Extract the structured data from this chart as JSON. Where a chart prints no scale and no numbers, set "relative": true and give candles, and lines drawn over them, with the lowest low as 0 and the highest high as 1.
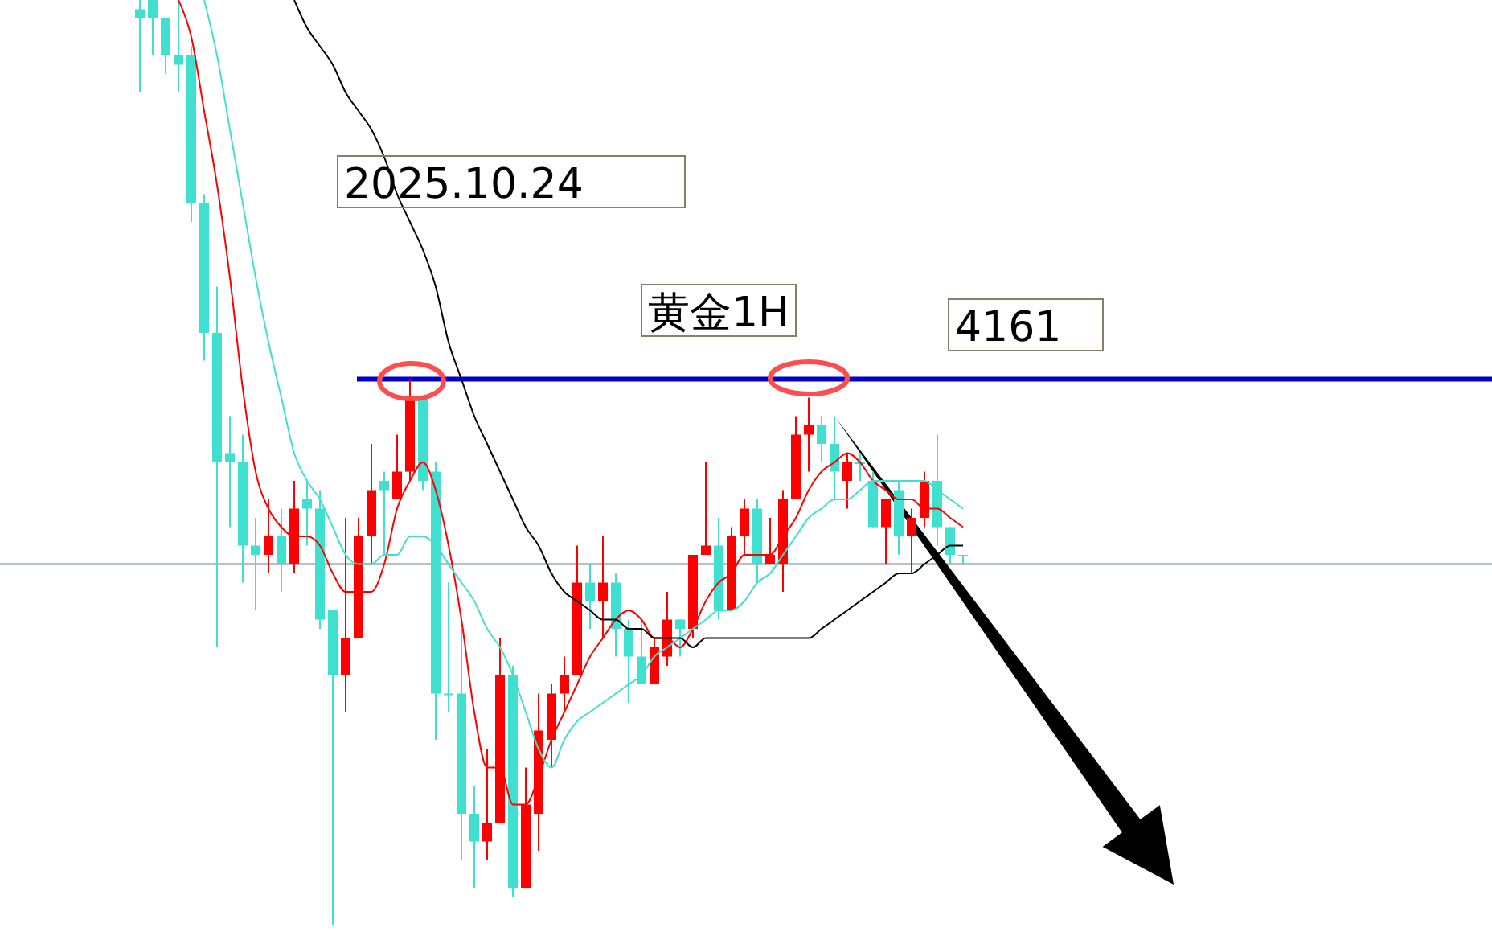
{
  "chart_data": {
    "type": "candlestick",
    "relative": true,
    "categories": [
      null,
      null,
      null,
      null,
      null,
      null,
      null,
      null,
      null,
      null,
      null,
      null,
      null,
      null,
      null,
      null,
      null,
      null,
      null,
      null,
      null,
      null,
      null,
      null,
      null,
      null,
      null,
      null,
      null,
      null,
      null,
      null,
      null,
      null,
      null,
      null,
      null,
      null,
      null,
      null,
      null,
      null,
      null,
      null,
      null,
      null,
      null,
      null,
      null,
      null,
      null,
      null,
      null,
      null,
      null,
      null,
      null,
      null,
      null,
      null,
      null,
      null,
      null,
      null,
      null
    ],
    "ohlc": [
      [
        0.99,
        1,
        0.9,
        0.98
      ],
      [
        1,
        1,
        0.94,
        0.98
      ],
      [
        0.98,
        0.98,
        0.92,
        0.94
      ],
      [
        0.94,
        1,
        0.9,
        0.93
      ],
      [
        0.94,
        0.95,
        0.76,
        0.78
      ],
      [
        0.78,
        0.79,
        0.61,
        0.64
      ],
      [
        0.64,
        0.69,
        0.3,
        0.5
      ],
      [
        0.51,
        0.55,
        0.43,
        0.5
      ],
      [
        0.5,
        0.53,
        0.37,
        0.41
      ],
      [
        0.41,
        0.44,
        0.34,
        0.4
      ],
      [
        0.4,
        0.46,
        0.38,
        0.42
      ],
      [
        0.42,
        0.45,
        0.36,
        0.39
      ],
      [
        0.39,
        0.48,
        0.38,
        0.45
      ],
      [
        0.46,
        0.48,
        0.41,
        0.45
      ],
      [
        0.45,
        0.47,
        0.32,
        0.33
      ],
      [
        0.34,
        0.34,
        0,
        0.27
      ],
      [
        0.27,
        0.44,
        0.23,
        0.31
      ],
      [
        0.31,
        0.44,
        0.31,
        0.42
      ],
      [
        0.42,
        0.52,
        0.39,
        0.47
      ],
      [
        0.48,
        0.49,
        0.4,
        0.47
      ],
      [
        0.46,
        0.53,
        0.46,
        0.49
      ],
      [
        0.49,
        0.59,
        0.48,
        0.57
      ],
      [
        0.57,
        0.57,
        0.47,
        0.48
      ],
      [
        0.49,
        0.5,
        0.2,
        0.25
      ],
      [
        0.25,
        0.37,
        0.23,
        0.25
      ],
      [
        0.25,
        0.32,
        0.07,
        0.12
      ],
      [
        0.12,
        0.15,
        0.04,
        0.09
      ],
      [
        0.09,
        0.19,
        0.07,
        0.11
      ],
      [
        0.11,
        0.31,
        0.11,
        0.27
      ],
      [
        0.27,
        0.28,
        0.03,
        0.04
      ],
      [
        0.04,
        0.17,
        0.04,
        0.13
      ],
      [
        0.12,
        0.25,
        0.08,
        0.21
      ],
      [
        0.2,
        0.26,
        0.17,
        0.25
      ],
      [
        0.25,
        0.29,
        0.23,
        0.27
      ],
      [
        0.27,
        0.41,
        0.27,
        0.37
      ],
      [
        0.37,
        0.39,
        0.32,
        0.35
      ],
      [
        0.35,
        0.42,
        0.31,
        0.37
      ],
      [
        0.37,
        0.38,
        0.29,
        0.32
      ],
      [
        0.32,
        0.33,
        0.24,
        0.29
      ],
      [
        0.29,
        0.33,
        0.26,
        0.26
      ],
      [
        0.26,
        0.31,
        0.26,
        0.3
      ],
      [
        0.29,
        0.36,
        0.28,
        0.33
      ],
      [
        0.33,
        0.33,
        0.29,
        0.32
      ],
      [
        0.32,
        0.4,
        0.31,
        0.4
      ],
      [
        0.4,
        0.5,
        0.4,
        0.41
      ],
      [
        0.41,
        0.44,
        0.33,
        0.34
      ],
      [
        0.34,
        0.43,
        0.34,
        0.42
      ],
      [
        0.42,
        0.46,
        0.4,
        0.45
      ],
      [
        0.45,
        0.46,
        0.37,
        0.39
      ],
      [
        0.39,
        0.44,
        0.39,
        0.4
      ],
      [
        0.39,
        0.47,
        0.36,
        0.46
      ],
      [
        0.46,
        0.55,
        0.46,
        0.53
      ],
      [
        0.53,
        0.57,
        0.49,
        0.54
      ],
      [
        0.54,
        0.55,
        0.5,
        0.52
      ],
      [
        0.52,
        0.55,
        0.46,
        0.49
      ],
      [
        0.48,
        0.51,
        0.45,
        0.5
      ],
      [
        0.5,
        0.51,
        0.48,
        0.5
      ],
      [
        0.48,
        0.49,
        0.43,
        0.43
      ],
      [
        0.43,
        0.46,
        0.39,
        0.46
      ],
      [
        0.47,
        0.48,
        0.4,
        0.42
      ],
      [
        0.42,
        0.45,
        0.38,
        0.44
      ],
      [
        0.44,
        0.49,
        0.43,
        0.48
      ],
      [
        0.48,
        0.53,
        0.41,
        0.43
      ],
      [
        0.43,
        0.43,
        0.39,
        0.4
      ],
      [
        0.4,
        0.4,
        0.39,
        0.4
      ]
    ],
    "colors": [
      "#40e0d0",
      "#40e0d0",
      "#40e0d0",
      "#40e0d0",
      "#40e0d0",
      "#40e0d0",
      "#40e0d0",
      "#40e0d0",
      "#40e0d0",
      "#40e0d0",
      "#ff0000",
      "#40e0d0",
      "#ff0000",
      "#40e0d0",
      "#40e0d0",
      "#40e0d0",
      "#ff0000",
      "#ff0000",
      "#ff0000",
      "#40e0d0",
      "#ff0000",
      "#ff0000",
      "#40e0d0",
      "#40e0d0",
      "#40e0d0",
      "#40e0d0",
      "#40e0d0",
      "#ff0000",
      "#ff0000",
      "#40e0d0",
      "#ff0000",
      "#ff0000",
      "#ff0000",
      "#ff0000",
      "#ff0000",
      "#40e0d0",
      "#ff0000",
      "#40e0d0",
      "#40e0d0",
      "#40e0d0",
      "#ff0000",
      "#ff0000",
      "#40e0d0",
      "#ff0000",
      "#ff0000",
      "#40e0d0",
      "#ff0000",
      "#ff0000",
      "#40e0d0",
      "#ff0000",
      "#ff0000",
      "#ff0000",
      "#ff0000",
      "#40e0d0",
      "#40e0d0",
      "#ff0000",
      "#40e0d0",
      "#40e0d0",
      "#ff0000",
      "#40e0d0",
      "#ff0000",
      "#ff0000",
      "#40e0d0",
      "#40e0d0",
      "#40e0d0"
    ],
    "series": [
      {
        "type": "line",
        "color": "#ff0000",
        "values": [
          null,
          null,
          null,
          1,
          0.96,
          0.88,
          0.8,
          0.7,
          0.58,
          0.49,
          0.45,
          0.43,
          0.42,
          0.42,
          0.41,
          0.38,
          0.36,
          0.36,
          0.36,
          0.39,
          0.45,
          0.48,
          0.5,
          0.47,
          0.41,
          0.33,
          0.23,
          0.17,
          0.17,
          0.13,
          0.13,
          0.16,
          0.2,
          0.23,
          0.26,
          0.29,
          0.31,
          0.33,
          0.34,
          0.33,
          0.31,
          0.31,
          0.3,
          0.32,
          0.35,
          0.37,
          0.38,
          0.4,
          0.4,
          0.4,
          0.42,
          0.44,
          0.47,
          0.49,
          0.5,
          0.51,
          0.5,
          0.48,
          0.47,
          0.46,
          0.46,
          0.45,
          0.45,
          0.44,
          0.43
        ]
      },
      {
        "type": "line",
        "color": "#40e0d0",
        "values": [
          null,
          null,
          null,
          null,
          null,
          1,
          0.94,
          0.86,
          0.78,
          0.7,
          0.63,
          0.57,
          0.51,
          0.48,
          0.46,
          0.43,
          0.4,
          0.39,
          0.39,
          0.4,
          0.4,
          0.42,
          0.42,
          0.41,
          0.39,
          0.37,
          0.35,
          0.32,
          0.3,
          0.27,
          0.23,
          0.19,
          0.17,
          0.2,
          0.22,
          0.23,
          0.24,
          0.25,
          0.26,
          0.27,
          0.29,
          0.3,
          0.31,
          0.32,
          0.33,
          0.34,
          0.34,
          0.35,
          0.37,
          0.38,
          0.4,
          0.42,
          0.44,
          0.45,
          0.46,
          0.46,
          0.47,
          0.48,
          0.48,
          0.48,
          0.48,
          0.48,
          0.47,
          0.46,
          0.45
        ]
      },
      {
        "type": "line",
        "color": "#000000",
        "values": [
          null,
          null,
          null,
          null,
          null,
          null,
          null,
          null,
          null,
          null,
          null,
          null,
          1,
          0.97,
          0.95,
          0.93,
          0.9,
          0.88,
          0.86,
          0.83,
          0.79,
          0.76,
          0.73,
          0.69,
          0.63,
          0.59,
          0.55,
          0.52,
          0.49,
          0.46,
          0.43,
          0.41,
          0.38,
          0.36,
          0.35,
          0.34,
          0.33,
          0.33,
          0.32,
          0.32,
          0.31,
          0.31,
          0.31,
          0.3,
          0.31,
          0.31,
          0.31,
          0.31,
          0.31,
          0.31,
          0.31,
          0.31,
          0.31,
          0.32,
          0.33,
          0.34,
          0.35,
          0.36,
          0.37,
          0.38,
          0.38,
          0.39,
          0.4,
          0.41,
          0.41
        ]
      }
    ],
    "ref_lines": [
      {
        "axis": "y",
        "value": 0.59,
        "color": "#0000cd"
      },
      {
        "axis": "y",
        "value": 0.39,
        "color": "#708090"
      }
    ],
    "annotations": [
      "2025.10.24",
      "黄金1H",
      "4161"
    ]
  }
}
